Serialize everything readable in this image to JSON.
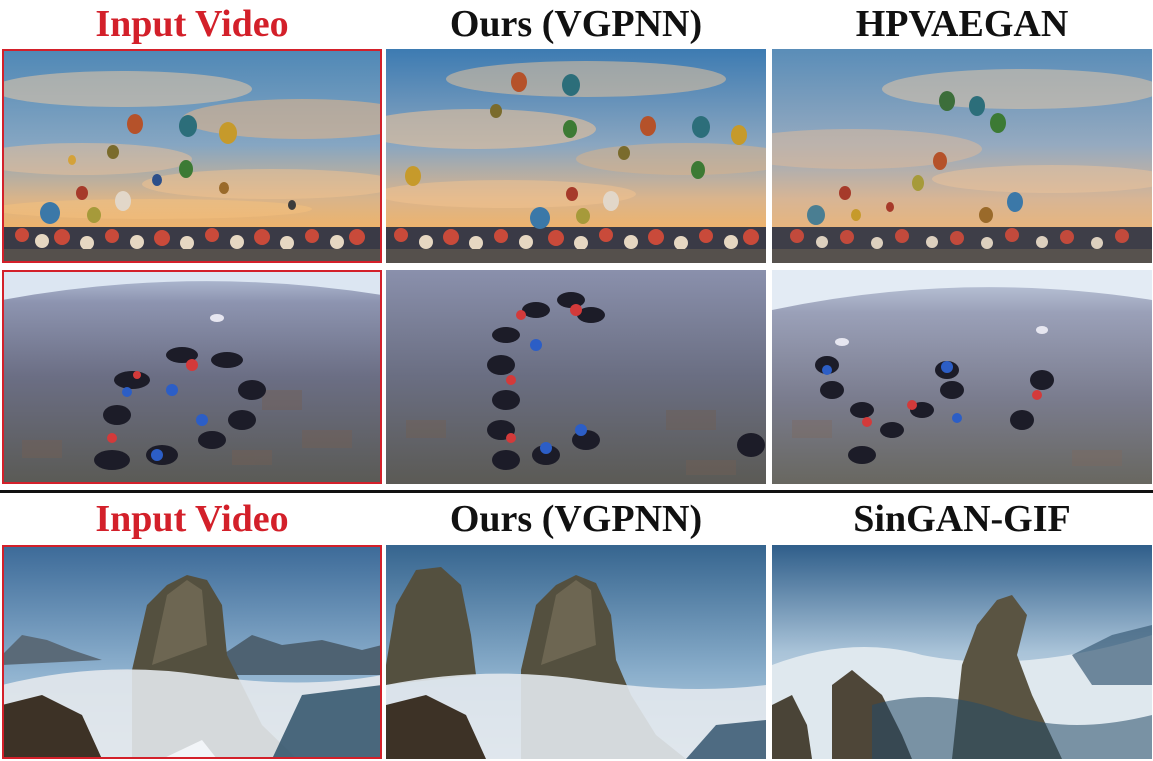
{
  "top": {
    "headers": [
      "Input Video",
      "Ours (VGPNN)",
      "HPVAEGAN"
    ]
  },
  "bottom": {
    "headers": [
      "Input Video",
      "Ours (VGPNN)",
      "SinGAN-GIF"
    ]
  },
  "colors": {
    "input_highlight": "#d3202a",
    "header_text": "#111111"
  }
}
